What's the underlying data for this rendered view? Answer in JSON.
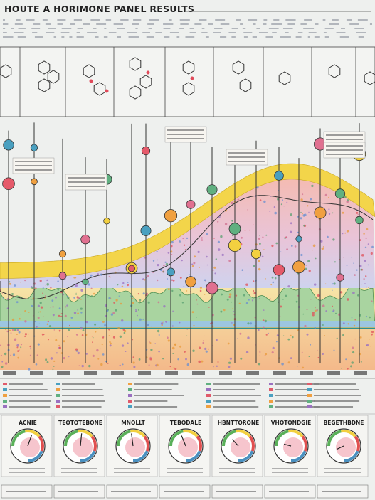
{
  "header": {
    "title": "HOUTE A HORIMONE PANEL RESULTS"
  },
  "gauges": [
    {
      "title": "ACNIE"
    },
    {
      "title": "TEOTOTEBONE"
    },
    {
      "title": "MNOLLT"
    },
    {
      "title": "TEBODALE"
    },
    {
      "title": "HBNTTORONE"
    },
    {
      "title": "VHOTONDGIE"
    },
    {
      "title": "BEGETHBDNE"
    }
  ]
}
